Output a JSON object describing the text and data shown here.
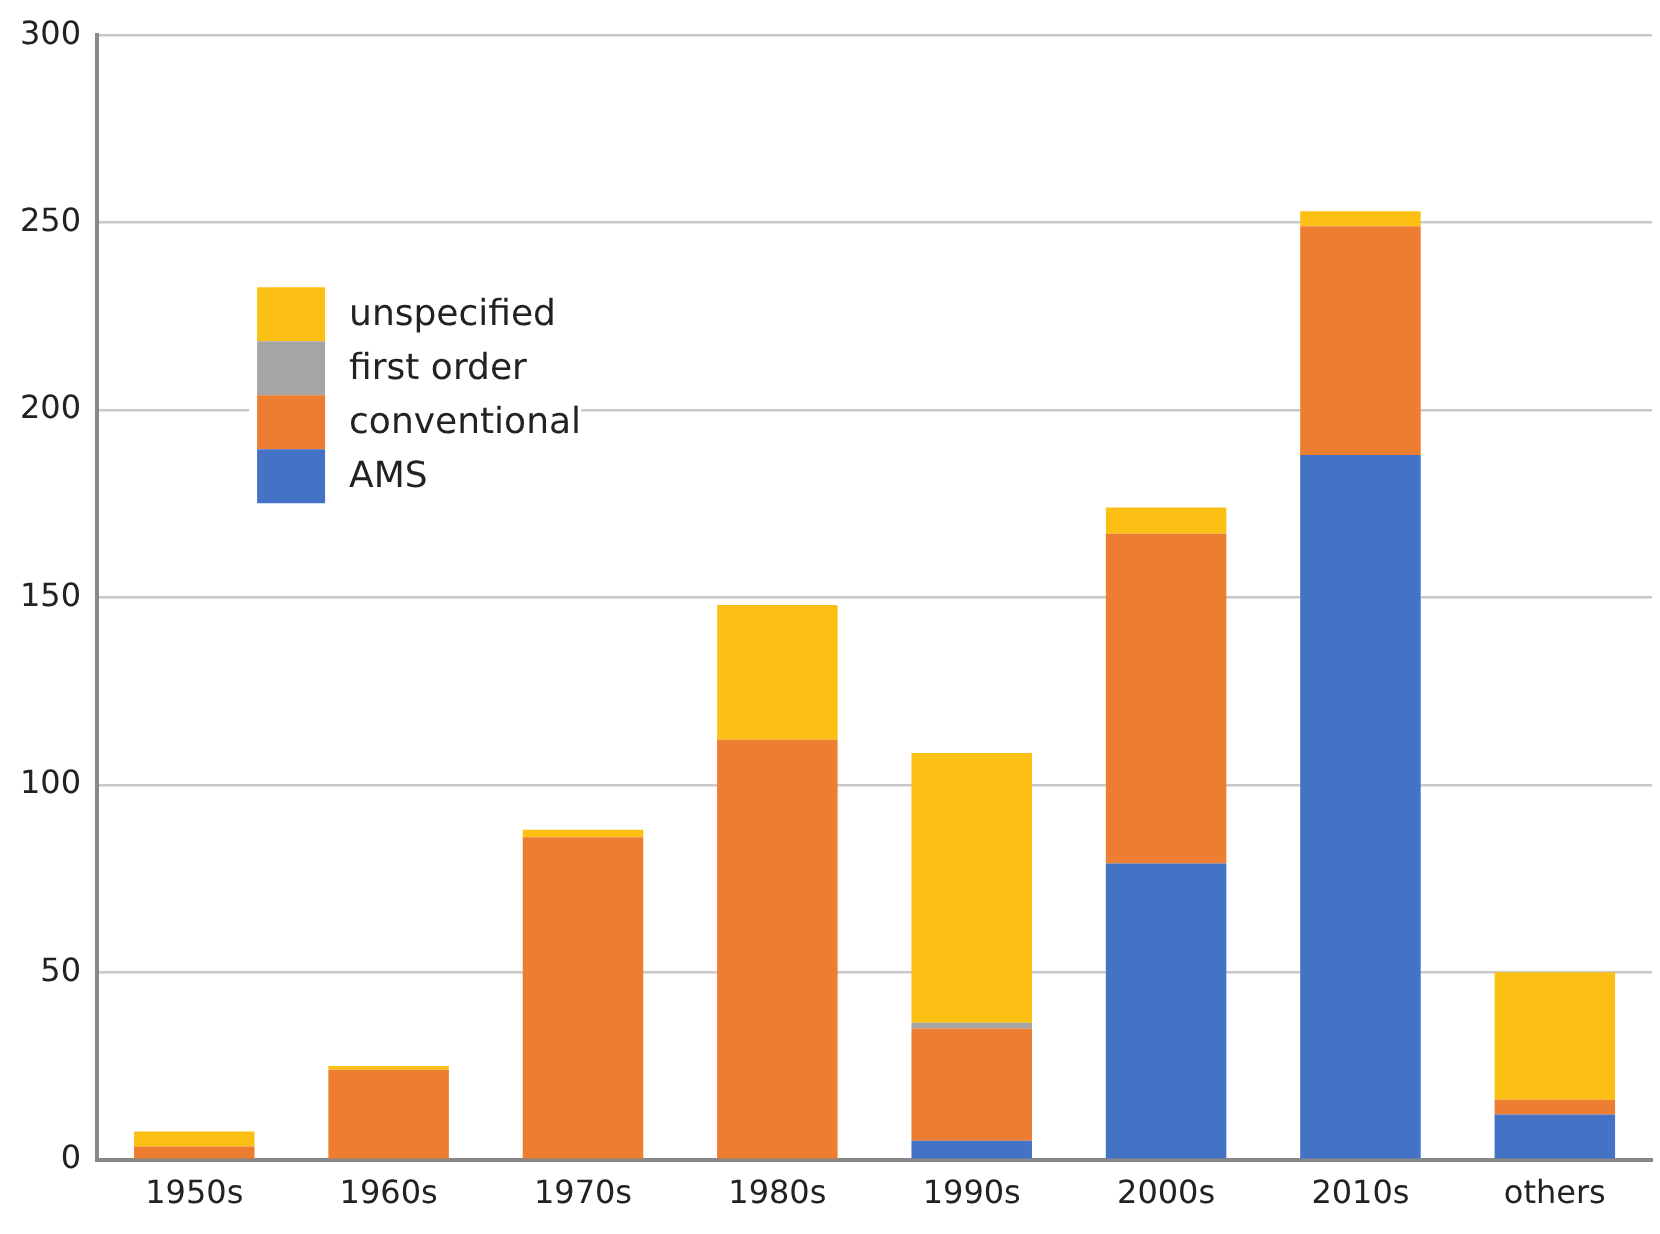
{
  "chart_data": {
    "type": "bar",
    "stacked": true,
    "categories": [
      "1950s",
      "1960s",
      "1970s",
      "1980s",
      "1990s",
      "2000s",
      "2010s",
      "others"
    ],
    "series": [
      {
        "name": "AMS",
        "color": "#4472c4",
        "values": [
          0,
          0,
          0,
          0,
          5,
          79,
          188,
          12
        ]
      },
      {
        "name": "conventional",
        "color": "#ed7d31",
        "values": [
          3.5,
          24,
          86,
          112,
          30,
          88,
          61,
          4
        ]
      },
      {
        "name": "first order",
        "color": "#a5a5a5",
        "values": [
          0,
          0,
          0,
          0,
          1.5,
          0,
          0,
          0
        ]
      },
      {
        "name": "unspecified",
        "color": "#fcc015",
        "values": [
          4,
          1,
          2,
          36,
          72,
          7,
          4,
          34
        ]
      }
    ],
    "ylim": [
      0,
      300
    ],
    "yticks": [
      0,
      50,
      100,
      150,
      200,
      250,
      300
    ],
    "grid": "y",
    "legend": "top left"
  }
}
